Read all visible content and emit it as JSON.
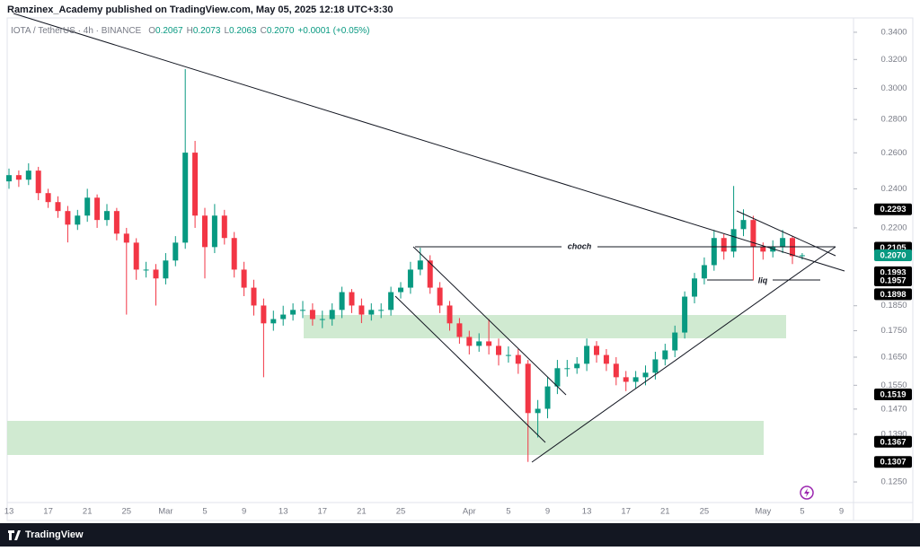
{
  "header": "Ramzinex_Academy published on TradingView.com, May 05, 2025 12:18 UTC+3:30",
  "footer": "TradingView",
  "chart_data": {
    "type": "candlestick",
    "legend": {
      "symbol": "IOTA / TetherUS · 4h · BINANCE",
      "items": [
        {
          "key": "O",
          "text": "0.2067"
        },
        {
          "key": "H",
          "text": "0.2073"
        },
        {
          "key": "L",
          "text": "0.2063"
        },
        {
          "key": "C",
          "text": "0.2070"
        }
      ],
      "change": "+0.0001 (+0.05%)"
    },
    "annotations": [
      "choch",
      "liq"
    ],
    "up_color": "#089981",
    "down_color": "#f23645",
    "log_scale": true,
    "categories": [
      "13",
      null,
      null,
      null,
      "17",
      null,
      null,
      null,
      "21",
      null,
      null,
      null,
      "25",
      null,
      null,
      null,
      "Mar",
      null,
      null,
      null,
      "5",
      null,
      null,
      null,
      "9",
      null,
      null,
      null,
      "13",
      null,
      null,
      null,
      "17",
      null,
      null,
      null,
      "21",
      null,
      null,
      null,
      "25",
      null,
      null,
      null,
      null,
      null,
      null,
      "Apr",
      null,
      null,
      null,
      "5",
      null,
      null,
      null,
      "9",
      null,
      null,
      null,
      "13",
      null,
      null,
      null,
      "17",
      null,
      null,
      null,
      "21",
      null,
      null,
      null,
      "25",
      null,
      null,
      null,
      null,
      null,
      "May",
      null,
      null,
      null,
      "5",
      null,
      null,
      null,
      "9"
    ],
    "open": [
      0.244,
      0.2474,
      0.2449,
      0.2499,
      0.2377,
      0.233,
      0.2284,
      0.2216,
      0.2261,
      0.2353,
      0.2239,
      0.2284,
      0.2172,
      0.2129,
      0.2005,
      0.2005,
      0.1966,
      0.2046,
      0.2129,
      0.2601,
      0.2261,
      0.2108,
      0.2261,
      0.2151,
      0.2005,
      0.1926,
      0.1851,
      0.1779,
      0.1796,
      0.1814,
      0.1833,
      0.1833,
      0.1796,
      0.1796,
      0.1833,
      0.1907,
      0.1851,
      0.1814,
      0.1833,
      0.1833,
      0.1907,
      0.1926,
      0.2005,
      0.2046,
      0.1926,
      0.1851,
      0.1779,
      0.1726,
      0.1692,
      0.1709,
      0.1692,
      0.1658,
      0.1658,
      0.1626,
      0.1457,
      0.1471,
      0.1546,
      0.161,
      0.161,
      0.1626,
      0.1692,
      0.1658,
      0.1626,
      0.1578,
      0.1562,
      0.1578,
      0.1594,
      0.1642,
      0.1675,
      0.1743,
      0.1888,
      0.1966,
      0.2025,
      0.2151,
      0.2087,
      0.2194,
      0.2239,
      0.2108,
      0.2087,
      0.2108,
      0.2151,
      0.2066,
      null,
      null,
      null,
      null
    ],
    "high": [
      0.251,
      0.25,
      0.254,
      0.252,
      0.24,
      0.236,
      0.231,
      0.229,
      0.24,
      0.237,
      0.232,
      0.23,
      0.22,
      0.215,
      0.204,
      0.203,
      0.208,
      0.216,
      0.3132,
      0.267,
      0.23,
      0.232,
      0.229,
      0.218,
      0.204,
      0.196,
      0.188,
      0.183,
      0.185,
      0.186,
      0.187,
      0.186,
      0.183,
      0.186,
      0.193,
      0.192,
      0.188,
      0.186,
      0.186,
      0.193,
      0.195,
      0.204,
      0.2105,
      0.207,
      0.195,
      0.187,
      0.18,
      0.175,
      0.174,
      0.1796,
      0.172,
      0.169,
      0.168,
      0.164,
      0.15,
      0.158,
      0.164,
      0.164,
      0.165,
      0.172,
      0.171,
      0.168,
      0.165,
      0.16,
      0.16,
      0.162,
      0.167,
      0.17,
      0.177,
      0.191,
      0.199,
      0.206,
      0.219,
      0.217,
      0.2415,
      0.2293,
      0.226,
      0.213,
      0.214,
      0.219,
      0.216,
      0.208,
      null,
      null,
      null,
      null
    ],
    "low": [
      0.24,
      0.241,
      0.242,
      0.234,
      0.23,
      0.225,
      0.213,
      0.219,
      0.223,
      0.22,
      0.221,
      0.214,
      0.1814,
      0.196,
      0.197,
      0.1851,
      0.194,
      0.202,
      0.21,
      0.22,
      0.1966,
      0.208,
      0.212,
      0.197,
      0.189,
      0.181,
      0.1578,
      0.175,
      0.177,
      0.179,
      0.18,
      0.177,
      0.176,
      0.177,
      0.18,
      0.182,
      0.178,
      0.179,
      0.18,
      0.181,
      0.188,
      0.19,
      0.198,
      0.19,
      0.182,
      0.175,
      0.17,
      0.166,
      0.167,
      0.166,
      0.162,
      0.163,
      0.159,
      0.1307,
      0.138,
      0.144,
      0.152,
      0.158,
      0.159,
      0.16,
      0.163,
      0.16,
      0.155,
      0.153,
      0.154,
      0.155,
      0.157,
      0.162,
      0.165,
      0.172,
      0.186,
      0.194,
      0.2,
      0.205,
      0.206,
      0.216,
      0.1957,
      0.205,
      0.206,
      0.208,
      0.203,
      0.205,
      null,
      null,
      null,
      null
    ],
    "close": [
      0.2474,
      0.2449,
      0.2499,
      0.2377,
      0.233,
      0.2284,
      0.2216,
      0.2261,
      0.2353,
      0.2239,
      0.2284,
      0.2172,
      0.2129,
      0.2005,
      0.2005,
      0.1966,
      0.2046,
      0.2129,
      0.2601,
      0.2261,
      0.2108,
      0.2261,
      0.2151,
      0.2005,
      0.1926,
      0.1851,
      0.1779,
      0.1796,
      0.1814,
      0.1833,
      0.1833,
      0.1796,
      0.1796,
      0.1833,
      0.1907,
      0.1851,
      0.1814,
      0.1833,
      0.1833,
      0.1907,
      0.1926,
      0.2005,
      0.2046,
      0.1926,
      0.1851,
      0.1779,
      0.1726,
      0.1692,
      0.1709,
      0.1692,
      0.1658,
      0.1658,
      0.1626,
      0.1457,
      0.1471,
      0.1546,
      0.161,
      0.161,
      0.1626,
      0.1692,
      0.1658,
      0.1626,
      0.1578,
      0.1562,
      0.1578,
      0.1594,
      0.1642,
      0.1675,
      0.1743,
      0.1888,
      0.1966,
      0.2025,
      0.2151,
      0.2087,
      0.2194,
      0.2239,
      0.2108,
      0.2087,
      0.2108,
      0.2151,
      0.2066,
      0.207,
      null,
      null,
      null,
      null
    ],
    "ylim": [
      0.1194,
      0.351
    ],
    "yticks": [
      {
        "value": 0.34,
        "label": "0.3400"
      },
      {
        "value": 0.32,
        "label": "0.3200"
      },
      {
        "value": 0.3,
        "label": "0.3000"
      },
      {
        "value": 0.28,
        "label": "0.2800"
      },
      {
        "value": 0.26,
        "label": "0.2600"
      },
      {
        "value": 0.24,
        "label": "0.2400"
      },
      {
        "value": 0.22,
        "label": "0.2200"
      },
      {
        "value": 0.185,
        "label": "0.1850"
      },
      {
        "value": 0.175,
        "label": "0.1750"
      },
      {
        "value": 0.165,
        "label": "0.1650"
      },
      {
        "value": 0.155,
        "label": "0.1550"
      },
      {
        "value": 0.147,
        "label": "0.1470"
      },
      {
        "value": 0.139,
        "label": "0.1390"
      },
      {
        "value": 0.125,
        "label": "0.1250"
      }
    ],
    "price_labels": [
      {
        "value": 0.2293,
        "color": "#000000"
      },
      {
        "value": 0.2105,
        "color": "#000000"
      },
      {
        "value": {
          "value": 0.207,
          "label": "0.2070"
        },
        "color": "#089981"
      },
      {
        "value": 0.1993,
        "color": "#000000"
      },
      {
        "value": 0.1957,
        "color": "#000000"
      },
      {
        "value": 0.1898,
        "color": "#000000"
      },
      {
        "value": 0.1519,
        "color": "#000000"
      },
      {
        "value": 0.1367,
        "color": "#000000"
      },
      {
        "value": 0.1307,
        "color": "#000000"
      }
    ]
  }
}
